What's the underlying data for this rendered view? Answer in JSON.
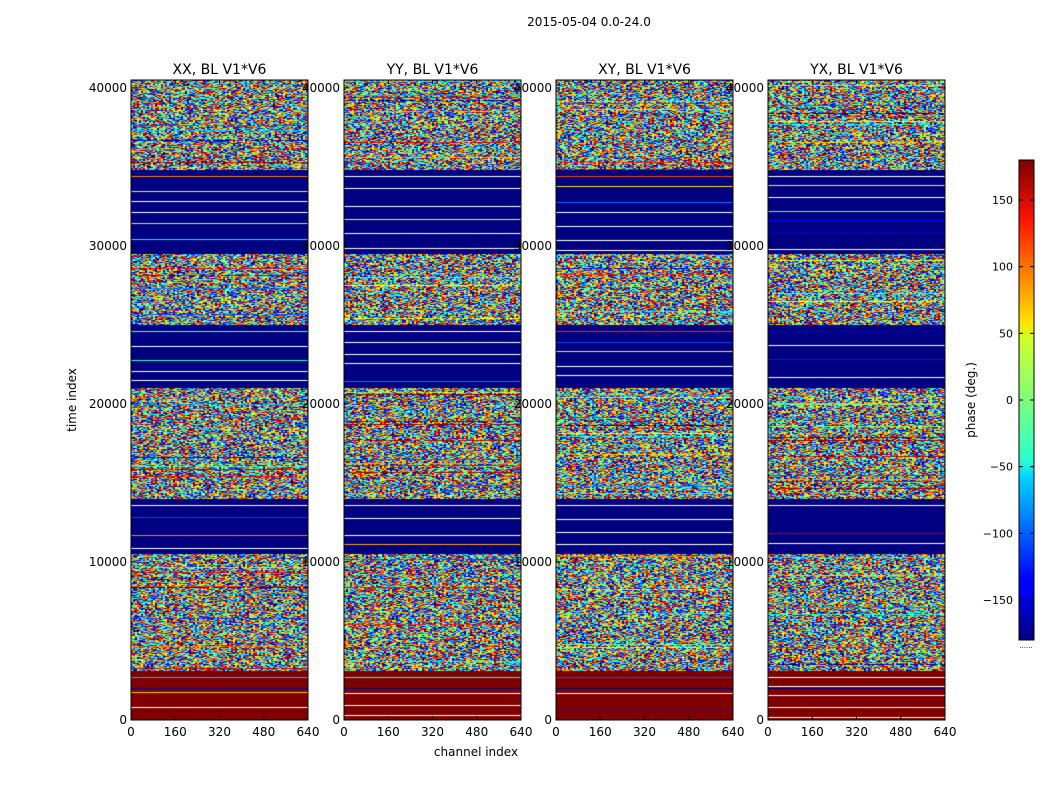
{
  "chart_data": {
    "type": "heatmap",
    "suptitle": "2015-05-04 0.0-24.0",
    "xlabel": "channel index",
    "ylabel": "time index",
    "xlim": [
      0,
      640
    ],
    "ylim": [
      0,
      40500
    ],
    "xticks": [
      0,
      160,
      320,
      480,
      640
    ],
    "xtick_labels": [
      "0",
      "160",
      "320",
      "480",
      "640"
    ],
    "yticks": [
      0,
      10000,
      20000,
      30000,
      40000
    ],
    "ytick_labels": [
      "0",
      "10000",
      "20000",
      "30000",
      "40000"
    ],
    "panels": [
      {
        "title": "XX, BL V1*V6"
      },
      {
        "title": "YY, BL V1*V6"
      },
      {
        "title": "XY, BL V1*V6"
      },
      {
        "title": "YX, BL V1*V6"
      }
    ],
    "colorbar": {
      "label": "phase (deg.)",
      "range": [
        -180,
        180
      ],
      "ticks": [
        150,
        100,
        50,
        0,
        -50,
        -100,
        -150
      ],
      "tick_labels": [
        "150",
        "100",
        "50",
        "0",
        "−50",
        "−100",
        "−150"
      ],
      "colormap": "jet"
    },
    "bands": [
      {
        "from": 0,
        "to": 3100,
        "kind": "solid",
        "value": 180
      },
      {
        "from": 3100,
        "to": 10500,
        "kind": "noise"
      },
      {
        "from": 10500,
        "to": 14000,
        "kind": "solid",
        "value": -180
      },
      {
        "from": 14000,
        "to": 21000,
        "kind": "noise"
      },
      {
        "from": 21000,
        "to": 25000,
        "kind": "solid",
        "value": -180
      },
      {
        "from": 25000,
        "to": 29500,
        "kind": "noise"
      },
      {
        "from": 29500,
        "to": 34800,
        "kind": "solid",
        "value": -180
      },
      {
        "from": 34800,
        "to": 40500,
        "kind": "noise"
      }
    ],
    "colors": {
      "dark_red": "#7f0000",
      "dark_blue": "#00007f"
    }
  }
}
